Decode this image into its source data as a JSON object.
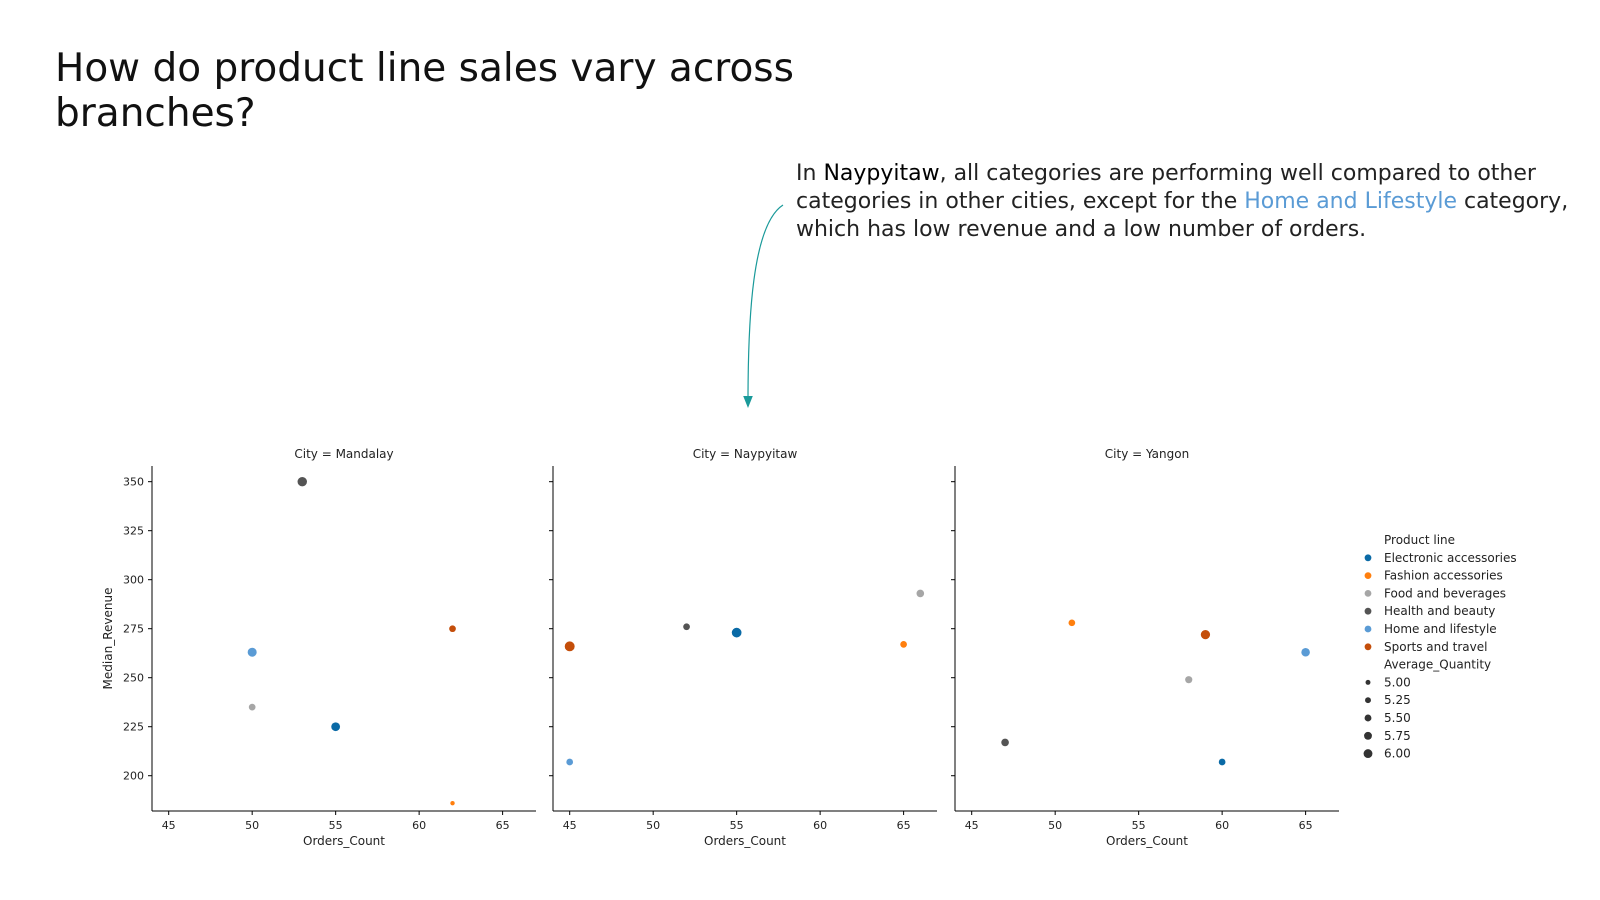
{
  "title": "How do product line sales vary across branches?",
  "annotation": {
    "prefix": "In ",
    "city": "Naypyitaw",
    "middle": ", all categories are performing well compared to other categories in other cities, except for the ",
    "category": "Home and Lifestyle",
    "suffix": " category, which has low revenue and a low number of orders.",
    "city_color": "#000000",
    "category_color": "#5a9bd5",
    "arrow_color": "#1a9a9a"
  },
  "chart_data": {
    "type": "scatter",
    "xlabel": "Orders_Count",
    "ylabel": "Median_Revenue",
    "xlim": [
      44,
      67
    ],
    "ylim": [
      182,
      358
    ],
    "xticks": [
      45,
      50,
      55,
      60,
      65
    ],
    "yticks": [
      200,
      225,
      250,
      275,
      300,
      325,
      350
    ],
    "grid": false,
    "legend_placement": "right",
    "hue_title": "Product line",
    "size_title": "Average_Quantity",
    "product_lines": [
      {
        "name": "Electronic accessories",
        "color": "#0a6aa6"
      },
      {
        "name": "Fashion accessories",
        "color": "#ff7f0e"
      },
      {
        "name": "Food and beverages",
        "color": "#a6a6a6"
      },
      {
        "name": "Health and beauty",
        "color": "#545454"
      },
      {
        "name": "Home and lifestyle",
        "color": "#5a9bd5"
      },
      {
        "name": "Sports and travel",
        "color": "#c44e0a"
      }
    ],
    "size_legend": [
      "5.00",
      "5.25",
      "5.50",
      "5.75",
      "6.00"
    ],
    "size_legend_values": [
      5.0,
      5.25,
      5.5,
      5.75,
      6.0
    ],
    "facets": [
      {
        "title": "City = Mandalay",
        "points": [
          {
            "product_line": "Electronic accessories",
            "x": 55,
            "y": 225,
            "avg_qty": 5.85
          },
          {
            "product_line": "Fashion accessories",
            "x": 62,
            "y": 186,
            "avg_qty": 4.9
          },
          {
            "product_line": "Food and beverages",
            "x": 50,
            "y": 235,
            "avg_qty": 5.4
          },
          {
            "product_line": "Health and beauty",
            "x": 53,
            "y": 350,
            "avg_qty": 6.0
          },
          {
            "product_line": "Home and lifestyle",
            "x": 50,
            "y": 263,
            "avg_qty": 5.9
          },
          {
            "product_line": "Sports and travel",
            "x": 62,
            "y": 275,
            "avg_qty": 5.4
          }
        ]
      },
      {
        "title": "City = Naypyitaw",
        "points": [
          {
            "product_line": "Electronic accessories",
            "x": 55,
            "y": 273,
            "avg_qty": 6.05
          },
          {
            "product_line": "Fashion accessories",
            "x": 65,
            "y": 267,
            "avg_qty": 5.4
          },
          {
            "product_line": "Food and beverages",
            "x": 66,
            "y": 293,
            "avg_qty": 5.6
          },
          {
            "product_line": "Health and beauty",
            "x": 52,
            "y": 276,
            "avg_qty": 5.4
          },
          {
            "product_line": "Home and lifestyle",
            "x": 45,
            "y": 207,
            "avg_qty": 5.4
          },
          {
            "product_line": "Sports and travel",
            "x": 45,
            "y": 266,
            "avg_qty": 6.1
          }
        ]
      },
      {
        "title": "City = Yangon",
        "points": [
          {
            "product_line": "Electronic accessories",
            "x": 60,
            "y": 207,
            "avg_qty": 5.4
          },
          {
            "product_line": "Fashion accessories",
            "x": 51,
            "y": 278,
            "avg_qty": 5.4
          },
          {
            "product_line": "Food and beverages",
            "x": 58,
            "y": 249,
            "avg_qty": 5.5
          },
          {
            "product_line": "Health and beauty",
            "x": 47,
            "y": 217,
            "avg_qty": 5.6
          },
          {
            "product_line": "Home and lifestyle",
            "x": 65,
            "y": 263,
            "avg_qty": 5.8
          },
          {
            "product_line": "Sports and travel",
            "x": 59,
            "y": 272,
            "avg_qty": 5.95
          }
        ]
      }
    ]
  }
}
